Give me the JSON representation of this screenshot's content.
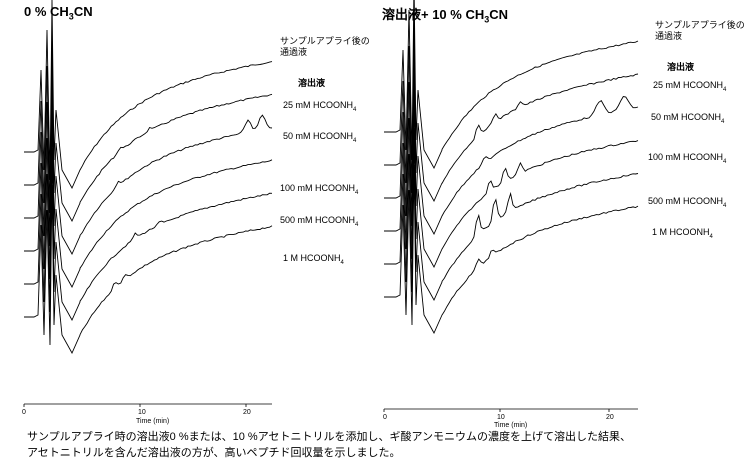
{
  "chart_data": [
    {
      "type": "line",
      "title_main": "0 % CH",
      "title_sub": "3",
      "title_end": "CN",
      "xlabel": "Time (min)",
      "xlim": [
        0,
        22
      ],
      "xticks": [
        "0",
        "10",
        "20"
      ],
      "legend_header": "溶出液",
      "series": [
        {
          "name": "サンプルアプライ後の通過液",
          "label_lines": [
            "サンプルアプライ後の",
            "通過液"
          ],
          "label_bold": false
        },
        {
          "name": "25 mM HCOONH4",
          "label_main": "25 mM HCOONH",
          "label_sub": "4"
        },
        {
          "name": "50 mM HCOONH4",
          "label_main": "50 mM HCOONH",
          "label_sub": "4"
        },
        {
          "name": "100 mM HCOONH4",
          "label_main": "100 mM HCOONH",
          "label_sub": "4"
        },
        {
          "name": "500 mM HCOONH4",
          "label_main": "500 mM HCOONH",
          "label_sub": "4"
        },
        {
          "name": "1 M HCOONH4",
          "label_main": "1 M HCOONH",
          "label_sub": "4"
        }
      ]
    },
    {
      "type": "line",
      "title_main": "溶出液+ 10 % CH",
      "title_sub": "3",
      "title_end": "CN",
      "xlabel": "Time (min)",
      "xlim": [
        0,
        22
      ],
      "xticks": [
        "0",
        "10",
        "20"
      ],
      "legend_header": "溶出液",
      "series": [
        {
          "name": "サンプルアプライ後の通過液",
          "label_lines": [
            "サンプルアプライ後の",
            "通過液"
          ]
        },
        {
          "name": "25 mM HCOONH4",
          "label_main": "25 mM HCOONH",
          "label_sub": "4"
        },
        {
          "name": "50 mM HCOONH4",
          "label_main": "50 mM HCOONH",
          "label_sub": "4"
        },
        {
          "name": "100 mM HCOONH4",
          "label_main": "100 mM HCOONH",
          "label_sub": "4"
        },
        {
          "name": "500 mM HCOONH4",
          "label_main": "500 mM HCOONH",
          "label_sub": "4"
        },
        {
          "name": "1 M HCOONH4",
          "label_main": "1 M HCOONH",
          "label_sub": "4"
        }
      ]
    }
  ],
  "caption": {
    "line1": "サンプルアプライ時の溶出液0 %または、10 %アセトニトリルを添加し、ギ酸アンモニウムの濃度を上げて溶出した結果、",
    "line2": "アセトニトリルを含んだ溶出液の方が、高いペプチド回収量を示しました。"
  }
}
